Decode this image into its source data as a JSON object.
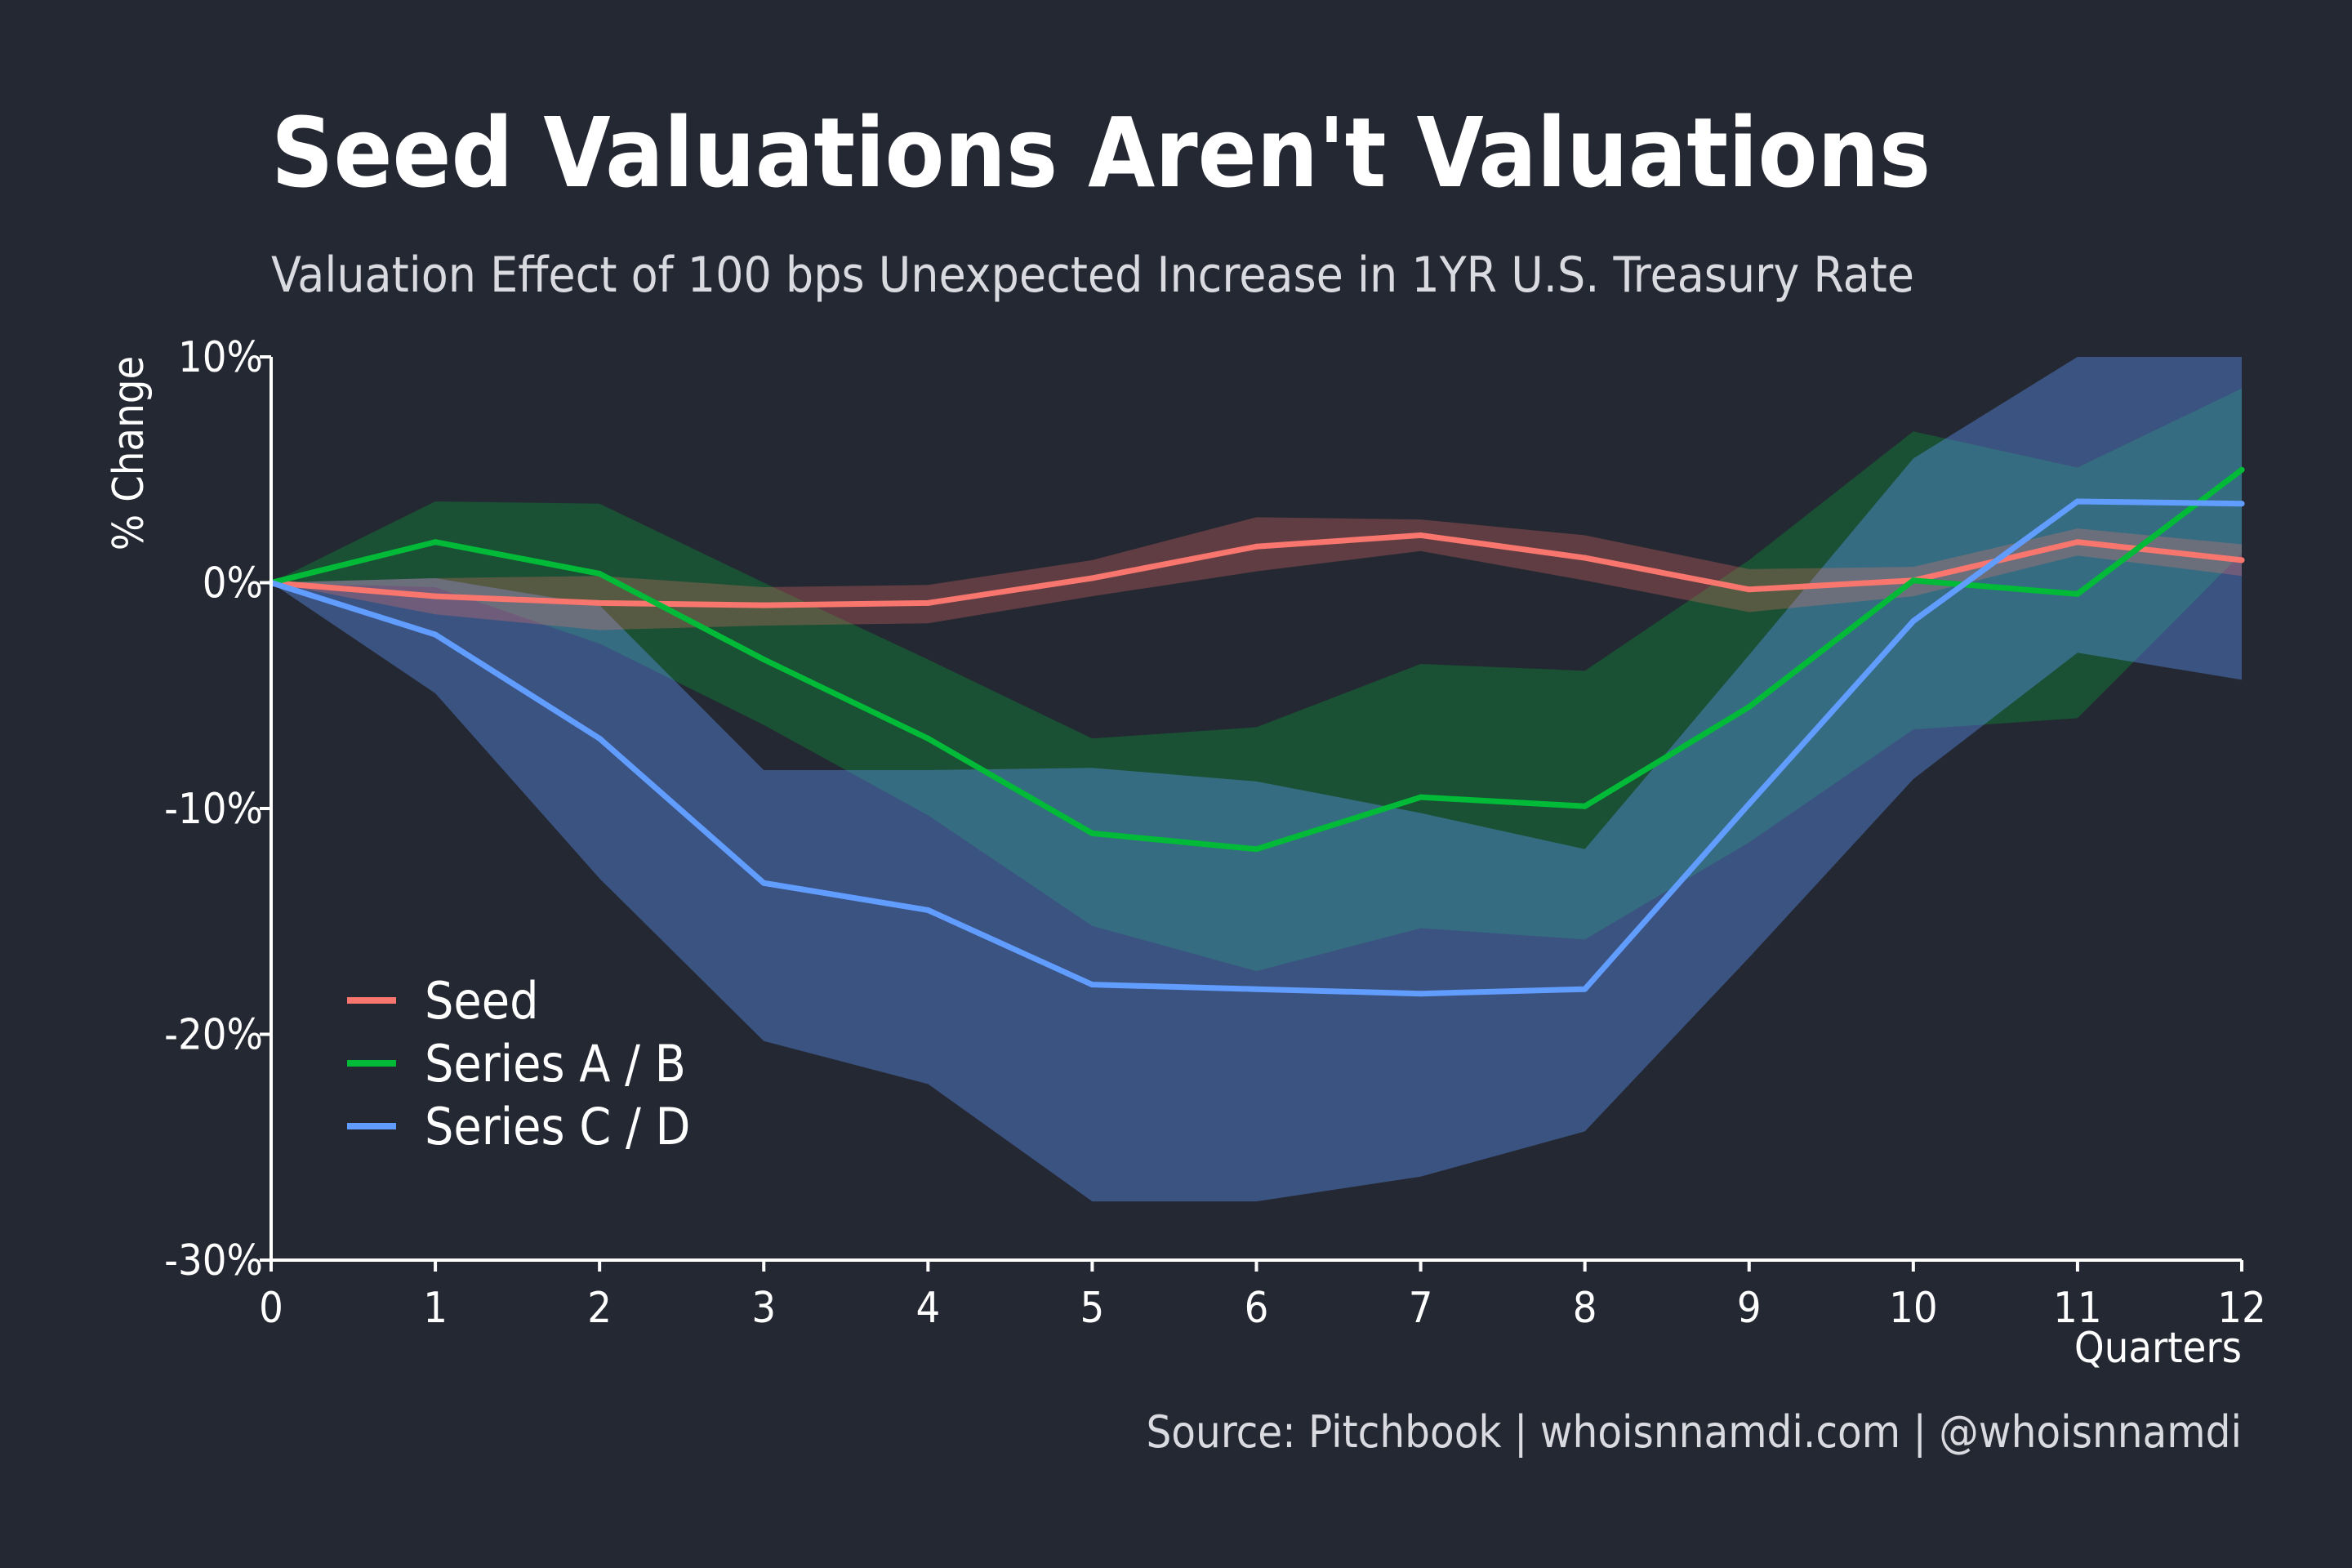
{
  "header": {
    "title": "Seed Valuations Aren't Valuations",
    "subtitle": "Valuation Effect of 100 bps Unexpected Increase in 1YR U.S. Treasury Rate"
  },
  "footer": {
    "source": "Source: Pitchbook | whoisnnamdi.com | @whoisnnamdi"
  },
  "chart_data": {
    "type": "line",
    "title": "Seed Valuations Aren't Valuations",
    "subtitle": "Valuation Effect of 100 bps Unexpected Increase in 1YR U.S. Treasury Rate",
    "xlabel": "Quarters",
    "ylabel": "% Change",
    "x": [
      0,
      1,
      2,
      3,
      4,
      5,
      6,
      7,
      8,
      9,
      10,
      11,
      12
    ],
    "xlim": [
      0,
      12
    ],
    "ylim": [
      -30,
      10
    ],
    "x_ticks": [
      "0",
      "1",
      "2",
      "3",
      "4",
      "5",
      "6",
      "7",
      "8",
      "9",
      "10",
      "11",
      "12"
    ],
    "y_ticks": [
      {
        "value": 10,
        "label": "10%"
      },
      {
        "value": 0,
        "label": "0%"
      },
      {
        "value": -10,
        "label": "-10%"
      },
      {
        "value": -20,
        "label": "-20%"
      },
      {
        "value": -30,
        "label": "-30%"
      }
    ],
    "grid": false,
    "legend_position": "bottom-left",
    "series": [
      {
        "name": "Seed",
        "color": "#f8766d",
        "values": [
          0,
          -0.6,
          -0.9,
          -1.0,
          -0.9,
          0.2,
          1.6,
          2.1,
          1.1,
          -0.3,
          0.1,
          1.8,
          1.0
        ],
        "upper": [
          0,
          0.2,
          0.3,
          -0.2,
          -0.1,
          1.0,
          2.9,
          2.8,
          2.1,
          0.6,
          0.7,
          2.4,
          1.7
        ],
        "lower": [
          0,
          -1.4,
          -2.1,
          -1.9,
          -1.8,
          -0.6,
          0.5,
          1.4,
          0.1,
          -1.3,
          -0.6,
          1.2,
          0.3
        ]
      },
      {
        "name": "Series A / B",
        "color": "#00ba38",
        "values": [
          0,
          1.8,
          0.4,
          -3.4,
          -6.9,
          -11.1,
          -11.8,
          -9.5,
          -9.9,
          -5.5,
          0.1,
          -0.5,
          5.0
        ],
        "upper": [
          0,
          3.6,
          3.5,
          0,
          -3.4,
          -6.9,
          -6.4,
          -3.6,
          -3.9,
          1.0,
          6.7,
          5.1,
          8.6
        ],
        "lower": [
          0,
          -0.2,
          -2.7,
          -6.3,
          -10.3,
          -15.2,
          -17.2,
          -15.3,
          -15.8,
          -11.5,
          -6.5,
          -6.0,
          1.3
        ]
      },
      {
        "name": "Series C / D",
        "color": "#619cff",
        "values": [
          0,
          -2.3,
          -6.9,
          -13.3,
          -14.5,
          -17.8,
          -18.0,
          -18.2,
          -18.0,
          -9.8,
          -1.7,
          3.6,
          3.5
        ],
        "upper": [
          0,
          0.2,
          -1.0,
          -8.3,
          -8.3,
          -8.2,
          -8.8,
          -10.2,
          -11.8,
          -3.2,
          5.5,
          10.5,
          10.0
        ],
        "lower": [
          0,
          -4.9,
          -13.1,
          -20.3,
          -22.2,
          -27.4,
          -27.4,
          -26.3,
          -24.3,
          -16.6,
          -8.7,
          -3.1,
          -4.3
        ]
      }
    ]
  }
}
